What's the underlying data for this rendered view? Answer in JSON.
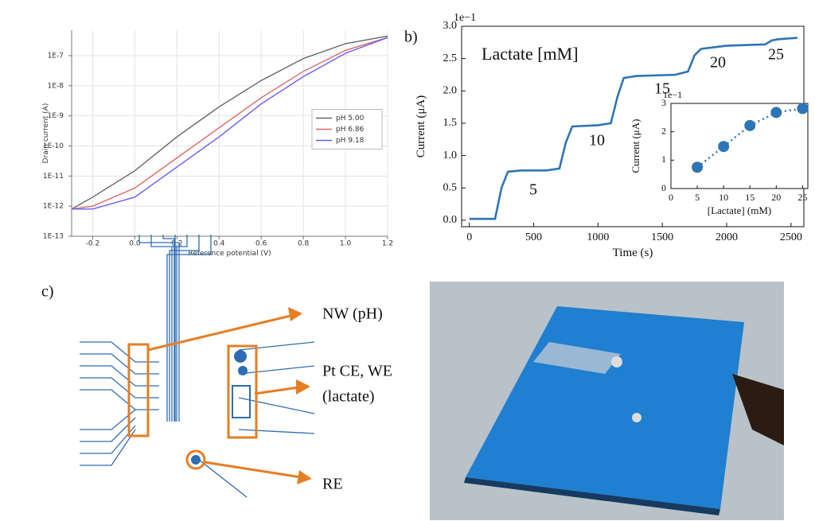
{
  "chart_data": [
    {
      "type": "line",
      "x_label": "Reference potential (V)",
      "y_label": "Drain current (A)",
      "x": [
        -0.3,
        -0.2,
        0,
        0.2,
        0.4,
        0.6,
        0.8,
        1.0,
        1.2
      ],
      "series": [
        {
          "name": "pH 5.00",
          "color": "#666666",
          "values": [
            8e-13,
            2e-12,
            1.5e-11,
            2e-10,
            2e-09,
            1.5e-08,
            8e-08,
            2.5e-07,
            4.5e-07
          ]
        },
        {
          "name": "pH 6.86",
          "color": "#e06666",
          "values": [
            8e-13,
            1e-12,
            4e-12,
            4e-11,
            4e-10,
            4e-09,
            3e-08,
            1.5e-07,
            4e-07
          ]
        },
        {
          "name": "pH 9.18",
          "color": "#6a5cff",
          "values": [
            8e-13,
            8e-13,
            2e-12,
            2e-11,
            2e-10,
            2.5e-09,
            2e-08,
            1.2e-07,
            4e-07
          ]
        }
      ],
      "xlim": [
        -0.3,
        1.2
      ],
      "xticks": [
        -0.2,
        {
          "value": 0,
          "label": "0.0"
        },
        0.2,
        0.4,
        0.6,
        0.8,
        {
          "value": 1,
          "label": "1.0"
        },
        1.2
      ],
      "log_y": true,
      "ylim": [
        1e-13,
        7e-07
      ],
      "yticks": [
        {
          "value": 1e-13,
          "label": "1E-13"
        },
        {
          "value": 1e-12,
          "label": "1E-12"
        },
        {
          "value": 1e-11,
          "label": "1E-11"
        },
        {
          "value": 1e-10,
          "label": "1E-10"
        },
        {
          "value": 1e-09,
          "label": "1E-9"
        },
        {
          "value": 1e-08,
          "label": "1E-8"
        },
        {
          "value": 1e-07,
          "label": "1E-7"
        }
      ],
      "grid": true,
      "legend": "center right"
    },
    {
      "type": "line",
      "panel_label": "b)",
      "x_label": "Time (s)",
      "y_label": "Current (μA)",
      "y_multiplier": "1e−1",
      "annotations": [
        "Lactate [mM]",
        "5",
        "10",
        "15",
        "20",
        "25"
      ],
      "x": [
        0,
        200,
        250,
        300,
        400,
        600,
        700,
        750,
        800,
        1000,
        1100,
        1150,
        1200,
        1300,
        1600,
        1700,
        1750,
        1800,
        2000,
        2300,
        2350,
        2400,
        2550
      ],
      "series": [
        {
          "name": null,
          "color": "#2e75b6",
          "values": [
            0.02,
            0.02,
            0.5,
            0.75,
            0.77,
            0.77,
            0.8,
            1.2,
            1.45,
            1.47,
            1.5,
            1.9,
            2.2,
            2.23,
            2.25,
            2.3,
            2.55,
            2.65,
            2.7,
            2.72,
            2.78,
            2.8,
            2.82
          ]
        }
      ],
      "xlim": [
        -60,
        2600
      ],
      "xticks": [
        0,
        500,
        1000,
        1500,
        2000,
        2500
      ],
      "ylim": [
        -0.1,
        3.0
      ],
      "yticks": [
        {
          "value": 0,
          "label": "0.0"
        },
        0.5,
        {
          "value": 1,
          "label": "1.0"
        },
        1.5,
        {
          "value": 2,
          "label": "2.0"
        },
        2.5,
        {
          "value": 3,
          "label": "3.0"
        }
      ],
      "grid": false
    },
    {
      "type": "scatter",
      "x_label": "[Lactate] (mM)",
      "y_label": "Current (μA)",
      "y_multiplier": "1e−1",
      "x": [
        5,
        10,
        15,
        20,
        25
      ],
      "series": [
        {
          "name": null,
          "color": "#2e75b6",
          "values": [
            0.75,
            1.48,
            2.22,
            2.68,
            2.82
          ]
        }
      ],
      "line_style": "dotted",
      "xlim": [
        0,
        26
      ],
      "xticks": [
        0,
        5,
        10,
        15,
        20,
        25
      ],
      "ylim": [
        0,
        3
      ],
      "yticks": [
        0,
        1,
        2,
        3
      ],
      "grid": false
    }
  ],
  "diagram": {
    "panel_label": "c)",
    "labels": [
      "NW (pH)",
      "Pt CE, WE",
      "(lactate)",
      "RE"
    ]
  }
}
